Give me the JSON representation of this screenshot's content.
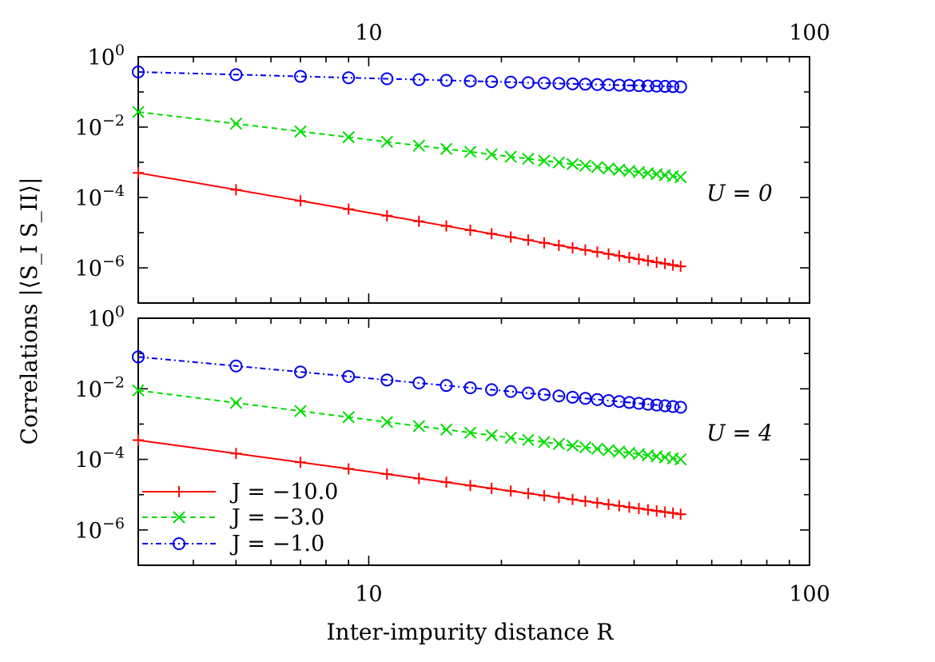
{
  "chart_data": [
    {
      "type": "line",
      "panel_label": "U = 0",
      "xscale": "log",
      "yscale": "log",
      "xlim": [
        3,
        100
      ],
      "ylim": [
        1e-07,
        1
      ],
      "top_ticks": [
        {
          "value": 10,
          "label": "10"
        },
        {
          "value": 100,
          "label": "100"
        }
      ],
      "y_ticks": [
        {
          "value": 1,
          "base": "10",
          "exp": "0"
        },
        {
          "value": 0.01,
          "base": "10",
          "exp": "−2"
        },
        {
          "value": 0.0001,
          "base": "10",
          "exp": "−4"
        },
        {
          "value": 1e-06,
          "base": "10",
          "exp": "−6"
        }
      ],
      "series": [
        {
          "name": "J = −10.0",
          "color": "#ff0000",
          "marker": "plus",
          "dash": "",
          "a0": 0.0005,
          "a1": 1.1e-06
        },
        {
          "name": "J = −3.0",
          "color": "#00dd00",
          "marker": "x",
          "dash": "7,5",
          "a0": 0.027,
          "a1": 0.00038
        },
        {
          "name": "J = −1.0",
          "color": "#0000ee",
          "marker": "circle",
          "dash": "7,4,2,4",
          "a0": 0.37,
          "a1": 0.14
        }
      ]
    },
    {
      "type": "line",
      "panel_label": "U = 4",
      "xscale": "log",
      "yscale": "log",
      "xlim": [
        3,
        100
      ],
      "ylim": [
        1e-07,
        1
      ],
      "y_ticks": [
        {
          "value": 1,
          "base": "10",
          "exp": "0"
        },
        {
          "value": 0.01,
          "base": "10",
          "exp": "−2"
        },
        {
          "value": 0.0001,
          "base": "10",
          "exp": "−4"
        },
        {
          "value": 1e-06,
          "base": "10",
          "exp": "−6"
        }
      ],
      "series": [
        {
          "name": "J = −10.0",
          "color": "#ff0000",
          "marker": "plus",
          "dash": "",
          "a0": 0.00035,
          "a1": 2.8e-06
        },
        {
          "name": "J = −3.0",
          "color": "#00dd00",
          "marker": "x",
          "dash": "7,5",
          "a0": 0.009,
          "a1": 0.0001
        },
        {
          "name": "J = −1.0",
          "color": "#0000ee",
          "marker": "circle",
          "dash": "7,4,2,4",
          "a0": 0.08,
          "a1": 0.003
        }
      ],
      "bottom_ticks": [
        {
          "value": 10,
          "label": "10"
        },
        {
          "value": 100,
          "label": "100"
        }
      ]
    }
  ],
  "x_values": [
    3,
    5,
    7,
    9,
    11,
    13,
    15,
    17,
    19,
    21,
    23,
    25,
    27,
    29,
    31,
    33,
    35,
    37,
    39,
    41,
    43,
    45,
    47,
    49,
    51
  ],
  "xlabel": "Inter-impurity distance R",
  "ylabel": "Correlations |⟨S_I S_II⟩|",
  "legend": {
    "position": "bottom-left of lower panel",
    "entries": [
      "J = −10.0",
      "J = −3.0",
      "J = −1.0"
    ]
  }
}
